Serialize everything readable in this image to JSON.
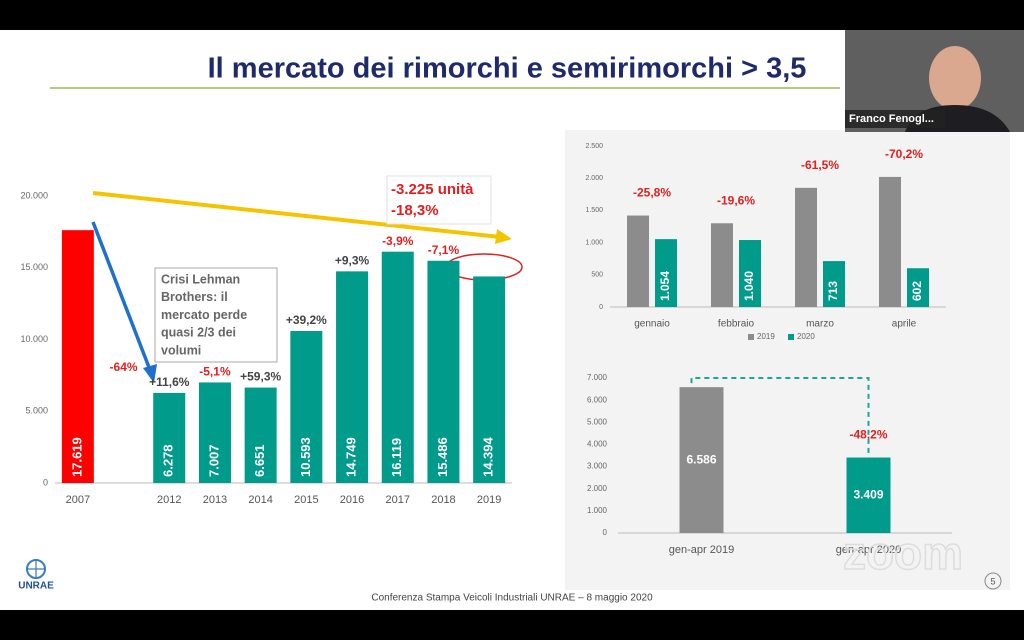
{
  "title": "Il mercato dei rimorchi e semirimorchi > 3,5",
  "logo_text": "UNRAE",
  "participant_name": "Franco Fenogl...",
  "footer": "Conferenza Stampa Veicoli Industriali UNRAE – 8 maggio 2020",
  "page_number": "5",
  "watermark": "zoom",
  "chart_data": [
    {
      "type": "bar",
      "categories": [
        "2007",
        null,
        "2012",
        "2013",
        "2014",
        "2015",
        "2016",
        "2017",
        "2018",
        "2019"
      ],
      "values": [
        17619,
        null,
        6278,
        7007,
        6651,
        10593,
        14749,
        16119,
        15486,
        14394
      ],
      "value_labels": [
        "17.619",
        null,
        "6.278",
        "7.007",
        "6.651",
        "10.593",
        "14.749",
        "16.119",
        "15.486",
        "14.394"
      ],
      "colors": [
        "#ff0000",
        null,
        "#009b8a",
        "#009b8a",
        "#009b8a",
        "#009b8a",
        "#009b8a",
        "#009b8a",
        "#009b8a",
        "#009b8a"
      ],
      "change_labels": [
        null,
        "-64%",
        "+11,6%",
        "-5,1%",
        "+59,3%",
        "+39,2%",
        "+9,3%",
        "-3,9%",
        "-7,1%",
        null
      ],
      "annotations": [
        [
          "Crisi Lehman",
          "Brothers: il",
          "mercato perde",
          "quasi 2/3 dei",
          "volumi"
        ],
        [
          "-3.225 unità",
          "-18,3%"
        ]
      ],
      "ylim": [
        0,
        20000
      ],
      "yticks": [
        0,
        {
          "value": 5000,
          "label": "5.000"
        },
        {
          "value": 10000,
          "label": "10.000"
        },
        {
          "value": 15000,
          "label": "15.000"
        },
        {
          "value": 20000,
          "label": "20.000"
        }
      ],
      "grid": false
    },
    {
      "type": "bar",
      "categories": [
        "gennaio",
        "febbraio",
        "marzo",
        "aprile"
      ],
      "series": [
        {
          "name": "2019",
          "color": "#8c8c8c",
          "values": [
            1420,
            1300,
            1850,
            2020
          ]
        },
        {
          "name": "2020",
          "color": "#009b8a",
          "values": [
            1054,
            1040,
            713,
            602
          ],
          "value_labels": [
            "1.054",
            "1.040",
            "713",
            "602"
          ]
        }
      ],
      "change_labels": [
        "-25,8%",
        "-19,6%",
        "-61,5%",
        "-70,2%"
      ],
      "ylim": [
        0,
        2500
      ],
      "yticks": [
        0,
        500,
        {
          "value": 1000,
          "label": "1.000"
        },
        {
          "value": 1500,
          "label": "1.500"
        },
        {
          "value": 2000,
          "label": "2.000"
        },
        {
          "value": 2500,
          "label": "2.500"
        }
      ],
      "grid": false,
      "legend": "bottom"
    },
    {
      "type": "bar",
      "categories": [
        "gen-apr 2019",
        "gen-apr 2020"
      ],
      "values": [
        6586,
        3409
      ],
      "value_labels": [
        "6.586",
        "3.409"
      ],
      "colors": [
        "#8c8c8c",
        "#009b8a"
      ],
      "change_labels": [
        null,
        "-48,2%"
      ],
      "ylim": [
        0,
        7000
      ],
      "yticks": [
        0,
        {
          "value": 1000,
          "label": "1.000"
        },
        {
          "value": 2000,
          "label": "2.000"
        },
        {
          "value": 3000,
          "label": "3.000"
        },
        {
          "value": 4000,
          "label": "4.000"
        },
        {
          "value": 5000,
          "label": "5.000"
        },
        {
          "value": 6000,
          "label": "6.000"
        },
        {
          "value": 7000,
          "label": "7.000"
        }
      ],
      "grid": false
    }
  ]
}
